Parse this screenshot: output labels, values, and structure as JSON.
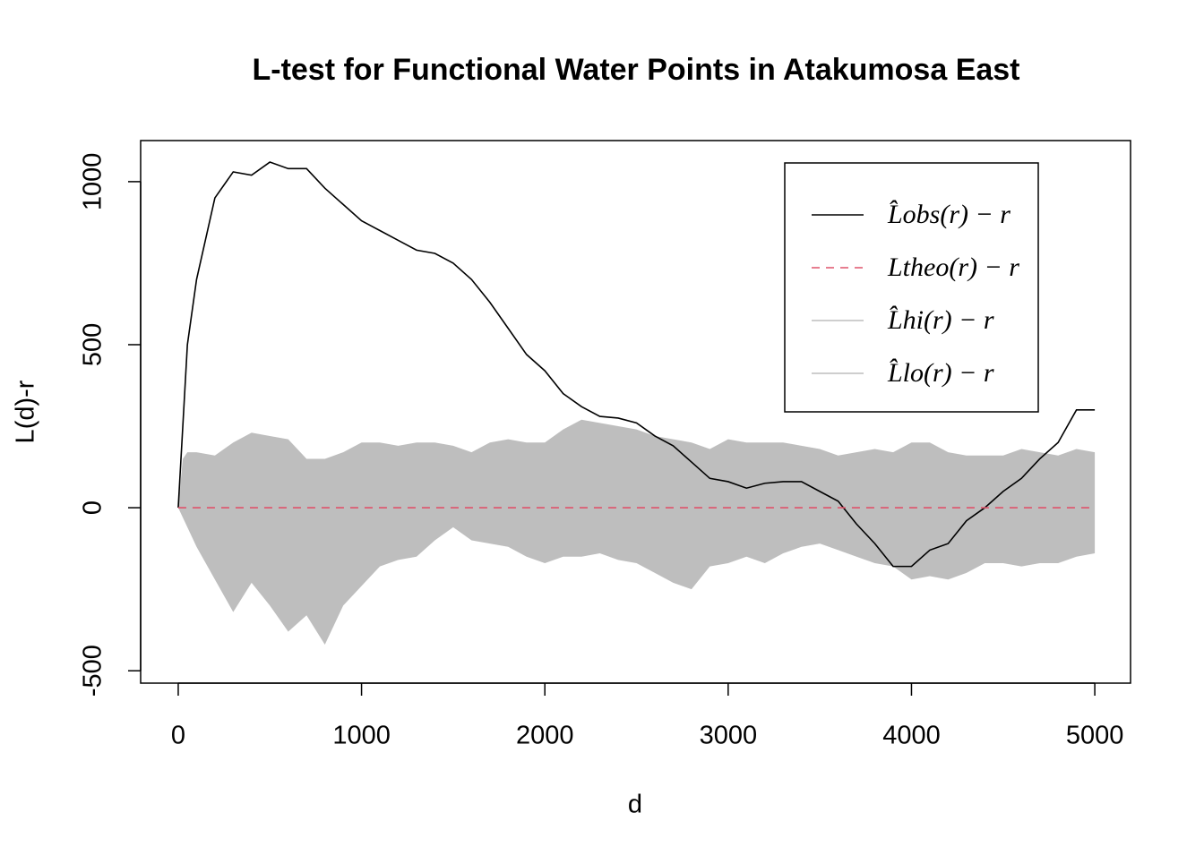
{
  "chart_data": {
    "type": "line",
    "title": "L-test for Functional Water Points in Atakumosa East",
    "xlabel": "d",
    "ylabel": "L(d)-r",
    "x": [
      0,
      25,
      50,
      100,
      200,
      300,
      400,
      500,
      600,
      700,
      800,
      900,
      1000,
      1100,
      1200,
      1300,
      1400,
      1500,
      1600,
      1700,
      1800,
      1900,
      2000,
      2100,
      2200,
      2300,
      2400,
      2500,
      2600,
      2700,
      2800,
      2900,
      3000,
      3100,
      3200,
      3300,
      3400,
      3500,
      3600,
      3700,
      3800,
      3900,
      4000,
      4100,
      4200,
      4300,
      4400,
      4500,
      4600,
      4700,
      4800,
      4900,
      5000
    ],
    "series": [
      {
        "name": "L̂obs(r) − r",
        "color": "#000000",
        "style": "solid",
        "values": [
          0,
          250,
          500,
          700,
          950,
          1030,
          1020,
          1060,
          1040,
          1040,
          980,
          930,
          880,
          850,
          820,
          790,
          780,
          750,
          700,
          630,
          550,
          470,
          420,
          350,
          310,
          280,
          275,
          260,
          220,
          190,
          140,
          90,
          80,
          60,
          75,
          80,
          80,
          50,
          20,
          -50,
          -110,
          -180,
          -180,
          -130,
          -110,
          -40,
          0,
          50,
          90,
          150,
          200,
          300,
          300
        ]
      },
      {
        "name": "Ltheo(r) − r",
        "color": "#df536b",
        "style": "dashed",
        "values": [
          0,
          0,
          0,
          0,
          0,
          0,
          0,
          0,
          0,
          0,
          0,
          0,
          0,
          0,
          0,
          0,
          0,
          0,
          0,
          0,
          0,
          0,
          0,
          0,
          0,
          0,
          0,
          0,
          0,
          0,
          0,
          0,
          0,
          0,
          0,
          0,
          0,
          0,
          0,
          0,
          0,
          0,
          0,
          0,
          0,
          0,
          0,
          0,
          0,
          0,
          0,
          0,
          0
        ]
      },
      {
        "name": "L̂hi(r) − r",
        "color": "#bebebe",
        "style": "band-upper",
        "values": [
          0,
          150,
          170,
          170,
          160,
          200,
          230,
          220,
          210,
          150,
          150,
          170,
          200,
          200,
          190,
          200,
          200,
          190,
          170,
          200,
          210,
          200,
          200,
          240,
          270,
          260,
          250,
          240,
          220,
          210,
          200,
          180,
          210,
          200,
          200,
          200,
          190,
          180,
          160,
          170,
          180,
          170,
          200,
          200,
          170,
          160,
          160,
          160,
          180,
          170,
          160,
          180,
          170
        ]
      },
      {
        "name": "L̂lo(r) − r",
        "color": "#bebebe",
        "style": "band-lower",
        "values": [
          0,
          -30,
          -60,
          -120,
          -220,
          -320,
          -230,
          -300,
          -380,
          -330,
          -420,
          -300,
          -240,
          -180,
          -160,
          -150,
          -100,
          -60,
          -100,
          -110,
          -120,
          -150,
          -170,
          -150,
          -150,
          -140,
          -160,
          -170,
          -200,
          -230,
          -250,
          -180,
          -170,
          -150,
          -170,
          -140,
          -120,
          -110,
          -130,
          -150,
          -170,
          -180,
          -220,
          -210,
          -220,
          -200,
          -170,
          -170,
          -180,
          -170,
          -170,
          -150,
          -140
        ]
      }
    ],
    "xlim": [
      -205,
      5195
    ],
    "ylim": [
      -538,
      1126
    ],
    "xticks": [
      0,
      1000,
      2000,
      3000,
      4000,
      5000
    ],
    "yticks": [
      -500,
      0,
      500,
      1000
    ],
    "legend": "topright"
  }
}
